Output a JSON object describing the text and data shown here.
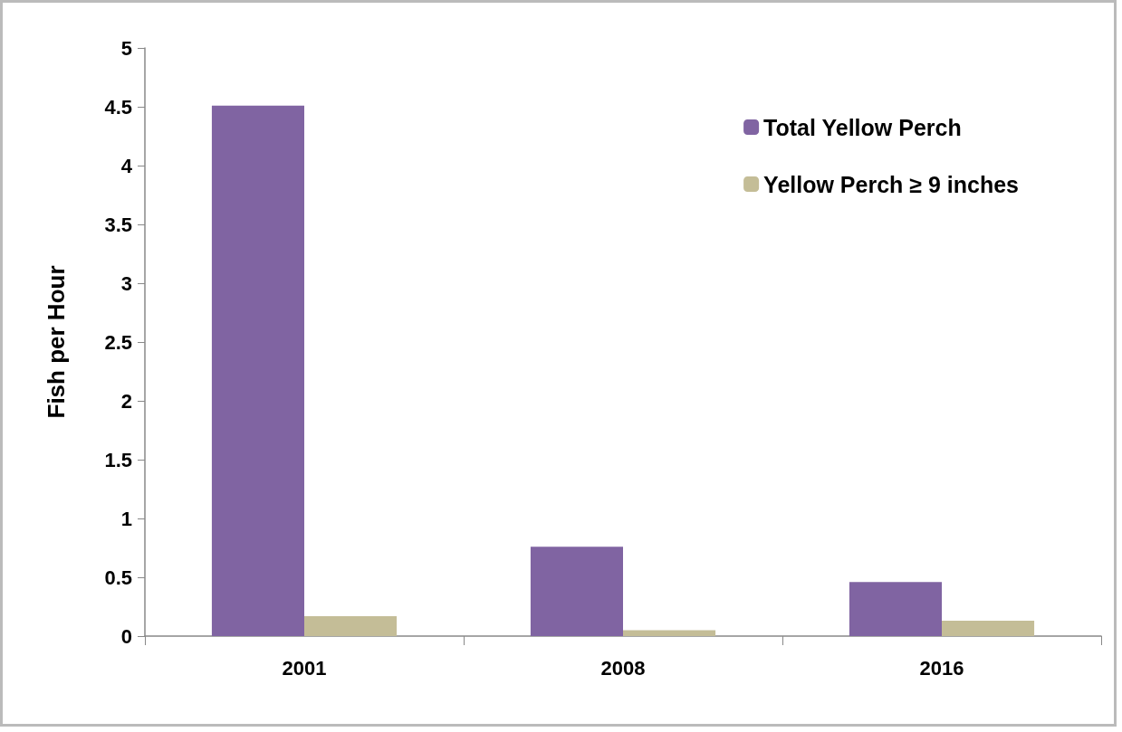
{
  "chart_data": {
    "type": "bar",
    "ylabel": "Fish per Hour",
    "categories": [
      "2001",
      "2008",
      "2016"
    ],
    "series": [
      {
        "name": "Total Yellow Perch",
        "color": "#8064a2",
        "values": [
          4.51,
          0.76,
          0.46
        ]
      },
      {
        "name": "Yellow Perch ≥ 9 inches",
        "color": "#c4bd97",
        "values": [
          0.17,
          0.05,
          0.13
        ]
      }
    ],
    "ylim": [
      0,
      5
    ],
    "yticks": [
      0,
      0.5,
      1,
      1.5,
      2,
      2.5,
      3,
      3.5,
      4,
      4.5,
      5
    ],
    "grid": false,
    "legend": "top right"
  }
}
